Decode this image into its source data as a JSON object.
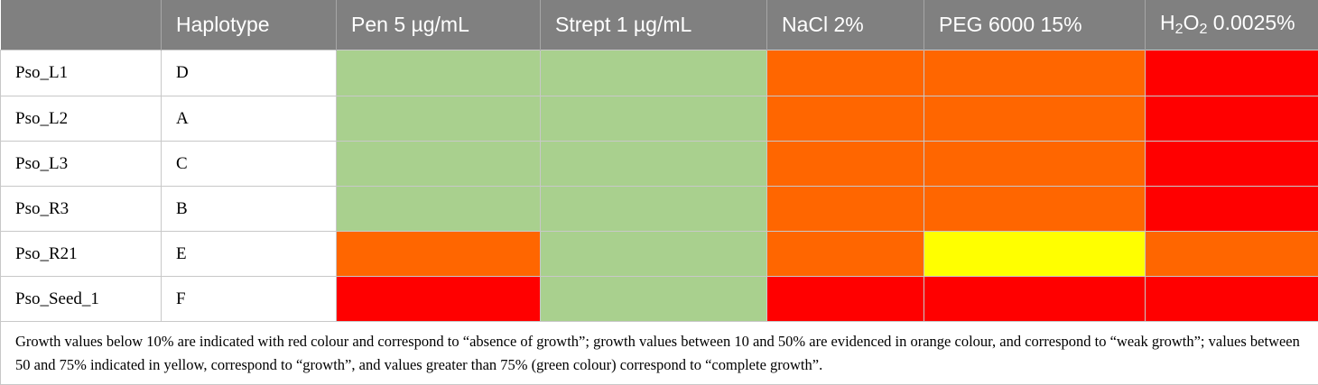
{
  "colors": {
    "header_bg": "#808080",
    "header_text": "#ffffff",
    "complete_growth": "#a9d08e",
    "growth": "#ffff00",
    "weak_growth": "#ff6600",
    "absence_of_growth": "#ff0000"
  },
  "table": {
    "headers": {
      "strain": "",
      "haplotype": "Haplotype",
      "pen": "Pen 5 µg/mL",
      "strept": "Strept 1 µg/mL",
      "nacl": "NaCl 2%",
      "peg": "PEG 6000 15%",
      "h2o2_prefix": "H",
      "h2o2_sub1": "2",
      "h2o2_mid": "O",
      "h2o2_sub2": "2",
      "h2o2_suffix": " 0.0025%"
    },
    "rows": [
      {
        "strain": "Pso_L1",
        "haplotype": "D",
        "pen": "complete_growth",
        "strept": "complete_growth",
        "nacl": "weak_growth",
        "peg": "weak_growth",
        "h2o2": "absence_of_growth"
      },
      {
        "strain": "Pso_L2",
        "haplotype": "A",
        "pen": "complete_growth",
        "strept": "complete_growth",
        "nacl": "weak_growth",
        "peg": "weak_growth",
        "h2o2": "absence_of_growth"
      },
      {
        "strain": "Pso_L3",
        "haplotype": "C",
        "pen": "complete_growth",
        "strept": "complete_growth",
        "nacl": "weak_growth",
        "peg": "weak_growth",
        "h2o2": "absence_of_growth"
      },
      {
        "strain": "Pso_R3",
        "haplotype": "B",
        "pen": "complete_growth",
        "strept": "complete_growth",
        "nacl": "weak_growth",
        "peg": "weak_growth",
        "h2o2": "absence_of_growth"
      },
      {
        "strain": "Pso_R21",
        "haplotype": "E",
        "pen": "weak_growth",
        "strept": "complete_growth",
        "nacl": "weak_growth",
        "peg": "growth",
        "h2o2": "weak_growth"
      },
      {
        "strain": "Pso_Seed_1",
        "haplotype": "F",
        "pen": "absence_of_growth",
        "strept": "complete_growth",
        "nacl": "absence_of_growth",
        "peg": "absence_of_growth",
        "h2o2": "absence_of_growth"
      }
    ],
    "note": "Growth values below 10% are indicated with red colour and correspond to “absence of growth”; growth values between 10 and 50% are evidenced in orange colour, and correspond to “weak growth”; values between 50 and 75% indicated in yellow, correspond to “growth”, and values greater than 75% (green colour) correspond to “complete growth”."
  }
}
